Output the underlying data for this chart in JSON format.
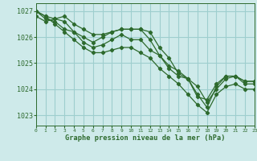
{
  "title": "Graphe pression niveau de la mer (hPa)",
  "background_color": "#ceeaea",
  "grid_color": "#9ecece",
  "line_color": "#2d6a2d",
  "xlim": [
    0,
    23
  ],
  "ylim": [
    1022.6,
    1027.3
  ],
  "yticks": [
    1023,
    1024,
    1025,
    1026,
    1027
  ],
  "xticks": [
    0,
    1,
    2,
    3,
    4,
    5,
    6,
    7,
    8,
    9,
    10,
    11,
    12,
    13,
    14,
    15,
    16,
    17,
    18,
    19,
    20,
    21,
    22,
    23
  ],
  "series": [
    [
      1027.0,
      1026.8,
      1026.7,
      1026.6,
      1026.2,
      1026.0,
      1025.8,
      1026.0,
      1026.2,
      1026.3,
      1026.3,
      1026.3,
      1026.2,
      1025.6,
      1025.2,
      1024.6,
      1024.4,
      1023.8,
      1023.3,
      1024.1,
      1024.5,
      1024.5,
      1024.3,
      1024.3
    ],
    [
      1026.8,
      1026.6,
      1026.7,
      1026.8,
      1026.5,
      1026.3,
      1026.1,
      1026.1,
      1026.2,
      1026.3,
      1026.3,
      1026.3,
      1025.9,
      1025.3,
      1024.9,
      1024.7,
      1024.4,
      1024.1,
      1023.5,
      1024.0,
      1024.4,
      1024.5,
      1024.3,
      1024.3
    ],
    [
      1027.0,
      1026.7,
      1026.6,
      1026.3,
      1026.2,
      1025.8,
      1025.6,
      1025.7,
      1025.9,
      1026.1,
      1025.9,
      1025.9,
      1025.5,
      1025.3,
      1024.8,
      1024.5,
      1024.4,
      1023.7,
      1023.6,
      1024.2,
      1024.5,
      1024.5,
      1024.2,
      1024.2
    ],
    [
      1027.0,
      1026.8,
      1026.5,
      1026.2,
      1025.9,
      1025.6,
      1025.4,
      1025.4,
      1025.5,
      1025.6,
      1025.6,
      1025.4,
      1025.2,
      1024.8,
      1024.5,
      1024.2,
      1023.8,
      1023.4,
      1023.1,
      1023.8,
      1024.1,
      1024.2,
      1024.0,
      1024.0
    ]
  ]
}
